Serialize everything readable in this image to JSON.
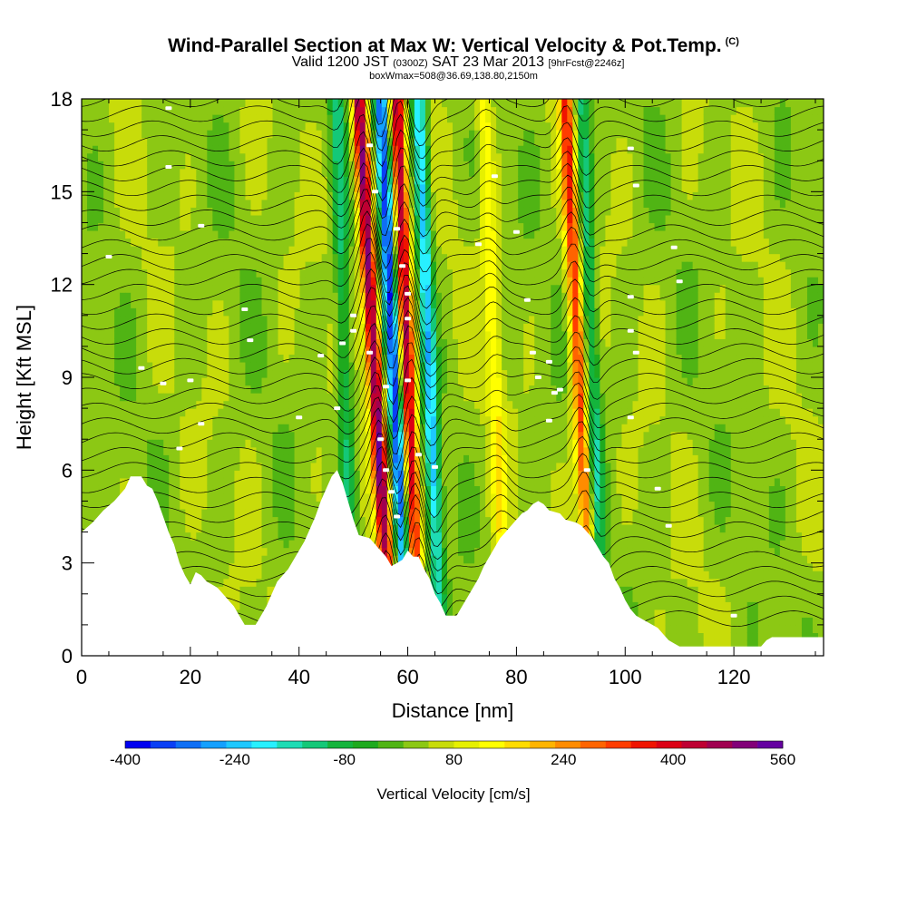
{
  "chart_data": {
    "type": "heatmap",
    "title": "Wind-Parallel Section at Max W: Vertical Velocity & Pot.Temp.",
    "copyright_mark": "(C)",
    "valid_prefix": "Valid 1200 JST",
    "valid_utc": "(0300Z)",
    "valid_date": "SAT 23 Mar 2013",
    "forecast": "[9hrFcst@2246z]",
    "box_info": "boxWmax=508@36.69,138.80,2150m",
    "xlabel": "Distance [nm]",
    "ylabel": "Height [Kft MSL]",
    "xlim": [
      0,
      136.5
    ],
    "ylim": [
      0,
      18
    ],
    "x_ticks": [
      "0",
      "20",
      "40",
      "60",
      "80",
      "100",
      "120"
    ],
    "y_ticks": [
      "0",
      "3",
      "6",
      "9",
      "12",
      "15",
      "18"
    ],
    "colorbar": {
      "title": "Vertical Velocity [cm/s]",
      "tick_labels": [
        "-400",
        "-240",
        "-80",
        "80",
        "240",
        "400",
        "560"
      ],
      "tick_values": [
        -400,
        -240,
        -80,
        80,
        240,
        400,
        560
      ],
      "colors": [
        "#0000f0",
        "#0a3ff5",
        "#0f6ff5",
        "#14a0ff",
        "#1ec8ff",
        "#28f0ff",
        "#1edcb4",
        "#14c878",
        "#14b43c",
        "#1eaa1e",
        "#50b414",
        "#8cc814",
        "#c8dc0a",
        "#e6f000",
        "#ffff00",
        "#ffdc00",
        "#ffb400",
        "#ff8c00",
        "#ff6400",
        "#ff3c00",
        "#f01400",
        "#dc0014",
        "#be0032",
        "#a00050",
        "#820078",
        "#6400a0"
      ]
    },
    "updraft_bands": [
      {
        "x_base": 57,
        "x_top": 51,
        "w_max": 480
      },
      {
        "x_base": 62,
        "x_top": 58,
        "w_max": 420
      },
      {
        "x_base": 94,
        "x_top": 89,
        "w_max": 300
      },
      {
        "x_base": 78,
        "x_top": 74,
        "w_max": 120
      }
    ],
    "downdraft_bands": [
      {
        "x_base": 60,
        "x_top": 55,
        "w_min": -380
      },
      {
        "x_base": 66,
        "x_top": 62,
        "w_min": -260
      },
      {
        "x_base": 96,
        "x_top": 92,
        "w_min": -160
      },
      {
        "x_base": 50,
        "x_top": 47,
        "w_min": -140
      }
    ],
    "terrain_profile": [
      [
        0,
        4.0
      ],
      [
        2,
        4.3
      ],
      [
        4,
        4.7
      ],
      [
        6,
        5.0
      ],
      [
        8,
        5.4
      ],
      [
        9,
        5.8
      ],
      [
        11,
        5.8
      ],
      [
        12,
        5.5
      ],
      [
        13,
        5.4
      ],
      [
        14,
        5.0
      ],
      [
        15,
        4.5
      ],
      [
        16,
        4.0
      ],
      [
        17,
        3.6
      ],
      [
        18,
        3.0
      ],
      [
        19,
        2.6
      ],
      [
        20,
        2.3
      ],
      [
        21,
        2.7
      ],
      [
        22,
        2.6
      ],
      [
        23,
        2.4
      ],
      [
        24,
        2.3
      ],
      [
        25,
        2.2
      ],
      [
        26,
        2.0
      ],
      [
        27,
        1.8
      ],
      [
        28,
        1.6
      ],
      [
        29,
        1.3
      ],
      [
        30,
        1.0
      ],
      [
        32,
        1.0
      ],
      [
        33,
        1.3
      ],
      [
        34,
        1.6
      ],
      [
        35,
        2.0
      ],
      [
        36,
        2.4
      ],
      [
        37,
        2.6
      ],
      [
        38,
        2.8
      ],
      [
        39,
        3.1
      ],
      [
        40,
        3.4
      ],
      [
        41,
        3.7
      ],
      [
        42,
        4.1
      ],
      [
        43,
        4.5
      ],
      [
        44,
        5.0
      ],
      [
        45,
        5.4
      ],
      [
        46,
        5.8
      ],
      [
        47,
        6.0
      ],
      [
        48,
        5.6
      ],
      [
        49,
        5.0
      ],
      [
        50,
        4.4
      ],
      [
        51,
        3.9
      ],
      [
        53,
        3.8
      ],
      [
        54,
        3.6
      ],
      [
        55,
        3.4
      ],
      [
        56,
        3.2
      ],
      [
        57,
        2.9
      ],
      [
        58,
        3.0
      ],
      [
        59,
        3.1
      ],
      [
        60,
        3.4
      ],
      [
        61,
        3.2
      ],
      [
        62,
        3.2
      ],
      [
        63,
        2.8
      ],
      [
        64,
        2.5
      ],
      [
        65,
        2.0
      ],
      [
        66,
        1.7
      ],
      [
        67,
        1.3
      ],
      [
        69,
        1.3
      ],
      [
        70,
        1.6
      ],
      [
        71,
        1.9
      ],
      [
        72,
        2.2
      ],
      [
        73,
        2.5
      ],
      [
        74,
        2.9
      ],
      [
        75,
        3.2
      ],
      [
        76,
        3.5
      ],
      [
        77,
        3.8
      ],
      [
        78,
        4.0
      ],
      [
        79,
        4.2
      ],
      [
        80,
        4.4
      ],
      [
        81,
        4.6
      ],
      [
        82,
        4.7
      ],
      [
        83,
        4.9
      ],
      [
        84,
        5.0
      ],
      [
        85,
        4.9
      ],
      [
        86,
        4.7
      ],
      [
        88,
        4.6
      ],
      [
        89,
        4.4
      ],
      [
        91,
        4.3
      ],
      [
        92,
        4.2
      ],
      [
        93,
        4.0
      ],
      [
        94,
        3.8
      ],
      [
        95,
        3.5
      ],
      [
        96,
        3.2
      ],
      [
        97,
        3.0
      ],
      [
        98,
        2.5
      ],
      [
        99,
        2.2
      ],
      [
        100,
        1.8
      ],
      [
        101,
        1.5
      ],
      [
        102,
        1.3
      ],
      [
        103,
        1.2
      ],
      [
        104,
        1.1
      ],
      [
        105,
        1.0
      ],
      [
        106,
        0.9
      ],
      [
        107,
        0.7
      ],
      [
        108,
        0.5
      ],
      [
        109,
        0.4
      ],
      [
        110,
        0.3
      ],
      [
        125,
        0.3
      ],
      [
        126,
        0.5
      ],
      [
        127,
        0.6
      ],
      [
        136.5,
        0.6
      ]
    ],
    "contour_label_positions": [
      [
        16,
        17.7
      ],
      [
        16,
        15.8
      ],
      [
        22,
        13.9
      ],
      [
        5,
        12.9
      ],
      [
        30,
        11.2
      ],
      [
        31,
        10.2
      ],
      [
        11,
        9.3
      ],
      [
        15,
        8.8
      ],
      [
        20,
        8.9
      ],
      [
        22,
        7.5
      ],
      [
        18,
        6.7
      ],
      [
        40,
        7.7
      ],
      [
        44,
        9.7
      ],
      [
        47,
        8.0
      ],
      [
        48,
        10.1
      ],
      [
        50,
        10.5
      ],
      [
        50,
        11.0
      ],
      [
        53,
        16.5
      ],
      [
        54,
        15.0
      ],
      [
        53,
        9.8
      ],
      [
        55,
        7.0
      ],
      [
        56,
        8.7
      ],
      [
        56,
        6.0
      ],
      [
        57,
        5.3
      ],
      [
        58,
        4.5
      ],
      [
        58,
        13.8
      ],
      [
        59,
        12.6
      ],
      [
        60,
        11.7
      ],
      [
        60,
        10.9
      ],
      [
        60,
        8.9
      ],
      [
        62,
        6.5
      ],
      [
        65,
        6.1
      ],
      [
        73,
        13.3
      ],
      [
        76,
        15.5
      ],
      [
        80,
        13.7
      ],
      [
        82,
        11.5
      ],
      [
        83,
        9.8
      ],
      [
        84,
        9.0
      ],
      [
        86,
        9.5
      ],
      [
        87,
        8.5
      ],
      [
        88,
        8.6
      ],
      [
        86,
        7.6
      ],
      [
        93,
        6.0
      ],
      [
        101,
        16.4
      ],
      [
        102,
        15.2
      ],
      [
        101,
        11.6
      ],
      [
        101,
        10.5
      ],
      [
        102,
        9.8
      ],
      [
        101,
        7.7
      ],
      [
        106,
        5.4
      ],
      [
        108,
        4.2
      ],
      [
        109,
        13.2
      ],
      [
        110,
        12.1
      ],
      [
        120,
        1.3
      ]
    ]
  }
}
